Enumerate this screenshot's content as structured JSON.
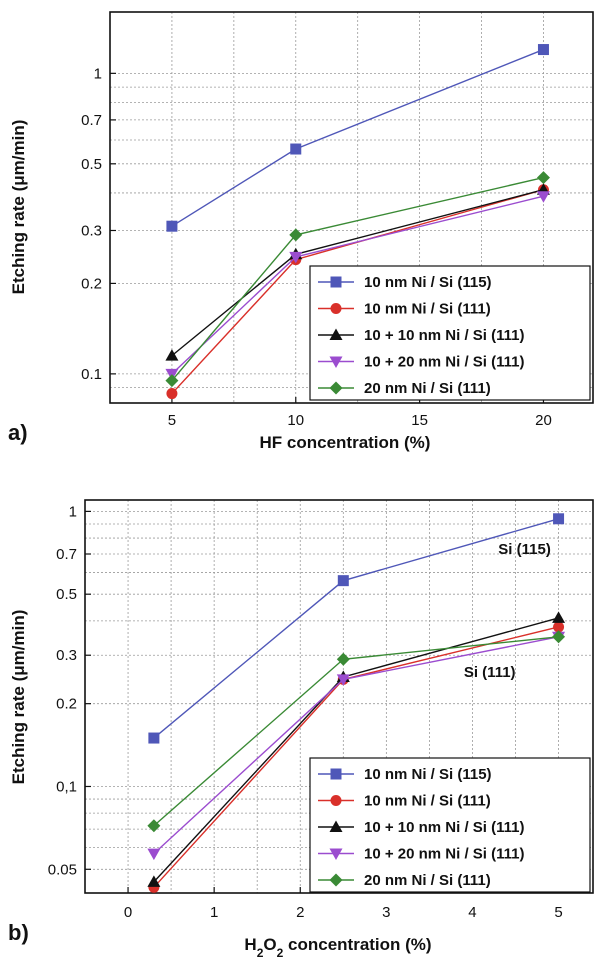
{
  "chart_data": [
    {
      "type": "line",
      "panel_label": "a)",
      "xlabel": "HF concentration (%)",
      "ylabel": "Etching rate (μm/min)",
      "xlim": [
        2.5,
        22
      ],
      "ylim": [
        0.08,
        1.6
      ],
      "yscale": "log",
      "grid": true,
      "legend_position": "bottom-right",
      "x_ticks": [
        5,
        10,
        15,
        20
      ],
      "y_ticks": [
        {
          "value": 0.1,
          "label": "0.1"
        },
        {
          "value": 0.2,
          "label": "0.2"
        },
        {
          "value": 0.3,
          "label": "0.3"
        },
        {
          "value": 0.5,
          "label": "0.5"
        },
        {
          "value": 0.7,
          "label": "0.7"
        },
        {
          "value": 1,
          "label": "1"
        }
      ],
      "series": [
        {
          "name": "10 nm Ni / Si (115)",
          "color": "#4f57b8",
          "marker": "square",
          "x": [
            5,
            10,
            20
          ],
          "y": [
            0.31,
            0.56,
            1.2
          ]
        },
        {
          "name": "10 nm Ni / Si (111)",
          "color": "#d9302a",
          "marker": "circle",
          "x": [
            5,
            10,
            20
          ],
          "y": [
            0.086,
            0.24,
            0.41
          ]
        },
        {
          "name": "10 + 10 nm Ni / Si (111)",
          "color": "#111111",
          "marker": "triangle-up",
          "x": [
            5,
            10,
            20
          ],
          "y": [
            0.115,
            0.25,
            0.41
          ]
        },
        {
          "name": "10 + 20 nm Ni / Si (111)",
          "color": "#9b4ccf",
          "marker": "triangle-down",
          "x": [
            5,
            10,
            20
          ],
          "y": [
            0.1,
            0.245,
            0.39
          ]
        },
        {
          "name": "20 nm Ni / Si (111)",
          "color": "#3a8a35",
          "marker": "diamond",
          "x": [
            5,
            10,
            20
          ],
          "y": [
            0.095,
            0.29,
            0.45
          ]
        }
      ]
    },
    {
      "type": "line",
      "panel_label": "b)",
      "xlabel_parts": [
        "H",
        "2",
        "O",
        "2",
        " concentration (%)"
      ],
      "ylabel": "Etching rate (μm/min)",
      "xlim": [
        -0.5,
        5.4
      ],
      "ylim": [
        0.041,
        1.1
      ],
      "yscale": "log",
      "grid": true,
      "legend_position": "bottom-right",
      "x_ticks": [
        0,
        1,
        2,
        3,
        4,
        5
      ],
      "y_ticks": [
        {
          "value": 0.05,
          "label": "0.05"
        },
        {
          "value": 0.1,
          "label": "0,1"
        },
        {
          "value": 0.2,
          "label": "0.2"
        },
        {
          "value": 0.3,
          "label": "0.3"
        },
        {
          "value": 0.5,
          "label": "0.5"
        },
        {
          "value": 0.7,
          "label": "0.7"
        },
        {
          "value": 1,
          "label": "1"
        }
      ],
      "annotations": [
        {
          "text": "Si (115)",
          "x": 4.3,
          "y": 0.7
        },
        {
          "text": "Si (111)",
          "x": 3.9,
          "y": 0.25
        }
      ],
      "series": [
        {
          "name": "10 nm Ni / Si (115)",
          "color": "#4f57b8",
          "marker": "square",
          "x": [
            0.3,
            2.5,
            5
          ],
          "y": [
            0.15,
            0.56,
            0.94
          ]
        },
        {
          "name": "10 nm Ni / Si (111)",
          "color": "#d9302a",
          "marker": "circle",
          "x": [
            0.3,
            2.5,
            5
          ],
          "y": [
            0.043,
            0.245,
            0.38
          ]
        },
        {
          "name": "10 + 10 nm Ni / Si (111)",
          "color": "#111111",
          "marker": "triangle-up",
          "x": [
            0.3,
            2.5,
            5
          ],
          "y": [
            0.045,
            0.25,
            0.41
          ]
        },
        {
          "name": "10 + 20 nm Ni / Si (111)",
          "color": "#9b4ccf",
          "marker": "triangle-down",
          "x": [
            0.3,
            2.5,
            5
          ],
          "y": [
            0.057,
            0.245,
            0.35
          ]
        },
        {
          "name": "20 nm Ni / Si (111)",
          "color": "#3a8a35",
          "marker": "diamond",
          "x": [
            0.3,
            2.5,
            5
          ],
          "y": [
            0.072,
            0.29,
            0.35
          ]
        }
      ]
    }
  ]
}
